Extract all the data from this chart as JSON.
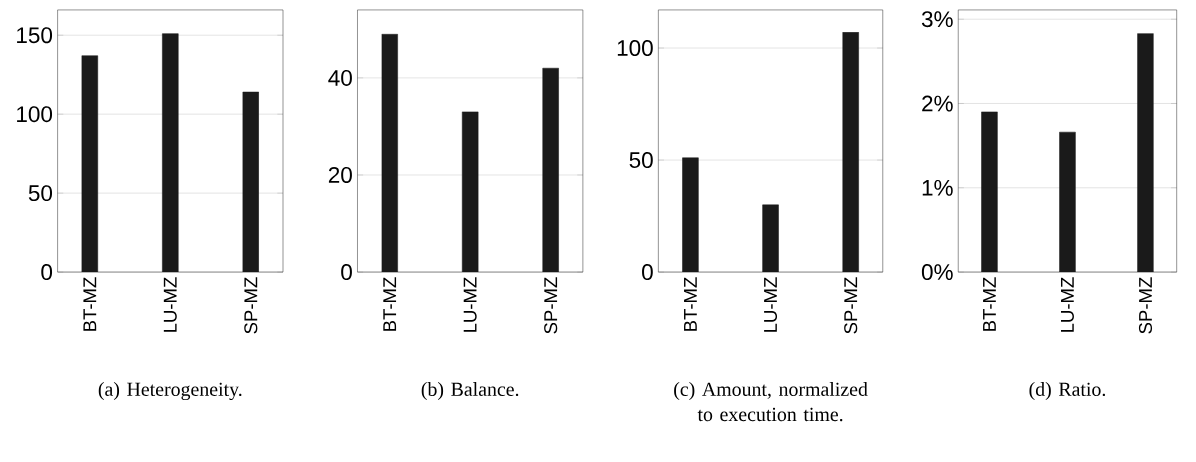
{
  "chart_data": [
    {
      "type": "bar",
      "title": "(a) Heterogeneity.",
      "categories": [
        "BT-MZ",
        "LU-MZ",
        "SP-MZ"
      ],
      "values": [
        137,
        151,
        114
      ],
      "color": "#1a1a1a",
      "ylim": [
        0,
        166
      ],
      "yticks": [
        0,
        50,
        100,
        150
      ],
      "grid": "y"
    },
    {
      "type": "bar",
      "title": "(b) Balance.",
      "categories": [
        "BT-MZ",
        "LU-MZ",
        "SP-MZ"
      ],
      "values": [
        49,
        33,
        42
      ],
      "color": "#1a1a1a",
      "ylim": [
        0,
        54
      ],
      "yticks": [
        0,
        20,
        40
      ],
      "grid": "y"
    },
    {
      "type": "bar",
      "title": "(c) Amount, normalized to execution time.",
      "categories": [
        "BT-MZ",
        "LU-MZ",
        "SP-MZ"
      ],
      "values": [
        51,
        30,
        107
      ],
      "color": "#1a1a1a",
      "ylim": [
        0,
        117
      ],
      "yticks": [
        0,
        50,
        100
      ],
      "grid": "y"
    },
    {
      "type": "bar",
      "title": "(d) Ratio.",
      "categories": [
        "BT-MZ",
        "LU-MZ",
        "SP-MZ"
      ],
      "values": [
        1.9,
        1.66,
        2.83
      ],
      "color": "#1a1a1a",
      "ylim": [
        0,
        3.11
      ],
      "yticks": [
        {
          "value": 0,
          "label": "0%"
        },
        {
          "value": 1,
          "label": "1%"
        },
        {
          "value": 2,
          "label": "2%"
        },
        {
          "value": 3,
          "label": "3%"
        }
      ],
      "grid": "y"
    }
  ]
}
